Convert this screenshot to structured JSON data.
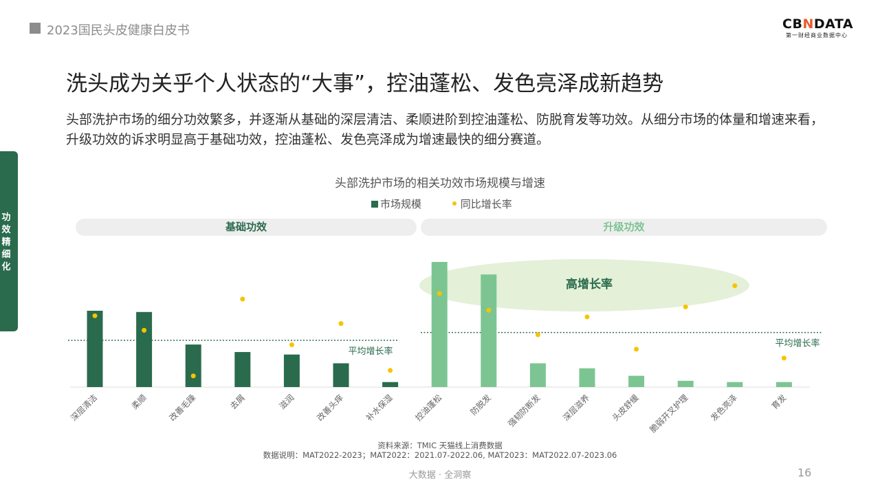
{
  "header": {
    "report_title": "2023国民头皮健康白皮书"
  },
  "logo": {
    "main_pre": "CB",
    "main_x": "N",
    "main_post": "DATA",
    "sub": "第一财经商业数据中心"
  },
  "side_tab": {
    "label": "功效精细化"
  },
  "slide": {
    "title": "洗头成为关乎个人状态的“大事”，控油蓬松、发色亮泽成新趋势",
    "description": "头部洗护市场的细分功效繁多，并逐渐从基础的深层清洁、柔顺进阶到控油蓬松、防脱育发等功效。从细分市场的体量和增速来看，升级功效的诉求明显高于基础功效，控油蓬松、发色亮泽成为增速最快的细分赛道。"
  },
  "groups": {
    "basic": "基础功效",
    "upgrade": "升级功效"
  },
  "colors": {
    "basic_bar": "#2a6b4d",
    "upgrade_bar": "#7cc592",
    "growth_dot": "#f5c400",
    "accent": "#2a6b4d"
  },
  "chart_data": {
    "type": "bar",
    "title": "头部洗护市场的相关功效市场规模与增速",
    "categories": [
      "深层清洁",
      "柔顺",
      "改善毛躁",
      "去屑",
      "滋润",
      "改善头痒",
      "补水保湿",
      "控油蓬松",
      "防脱发",
      "强韧防断发",
      "深层滋养",
      "头皮舒缓",
      "脆弱开叉护理",
      "发色亮泽",
      "育发"
    ],
    "group_of_category": [
      "基础功效",
      "基础功效",
      "基础功效",
      "基础功效",
      "基础功效",
      "基础功效",
      "基础功效",
      "升级功效",
      "升级功效",
      "升级功效",
      "升级功效",
      "升级功效",
      "升级功效",
      "升级功效",
      "升级功效"
    ],
    "series": [
      {
        "name": "市场规模",
        "type": "bar",
        "values": [
          61,
          60,
          34,
          28,
          26,
          19,
          4,
          100,
          90,
          19,
          15,
          9,
          5,
          4,
          4
        ]
      },
      {
        "name": "同比增长率",
        "type": "scatter",
        "values": [
          64,
          51,
          10,
          79,
          38,
          57,
          15,
          84,
          69,
          47,
          63,
          34,
          72,
          91,
          26
        ]
      }
    ],
    "reference_lines": [
      {
        "group": "基础功效",
        "label": "平均增长率",
        "value": 42
      },
      {
        "group": "升级功效",
        "label": "平均增长率",
        "value": 49
      }
    ],
    "annotations": [
      {
        "text": "高增长率"
      }
    ],
    "legend_position": "top-center",
    "grid": false
  },
  "source": {
    "line1": "资料来源：TMIC 天猫线上消费数据",
    "line2": "数据说明：MAT2022-2023；MAT2022：2021.07-2022.06, MAT2023：MAT2022.07-2023.06"
  },
  "footer": {
    "text": "大数据 · 全洞察",
    "page": "16"
  }
}
